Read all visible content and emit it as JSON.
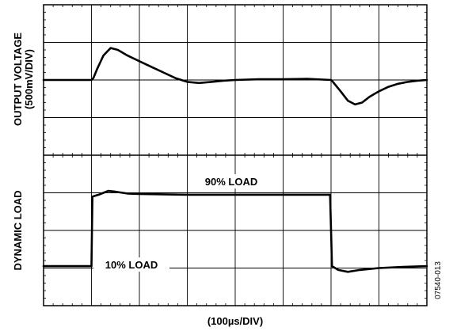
{
  "chart_data": {
    "type": "line",
    "title": "",
    "grid": true,
    "divisions": {
      "x": 8,
      "y": 8
    },
    "xlabel": "(100µs/DIV)",
    "ylabels": {
      "top": {
        "line1": "OUTPUT VOLTAGE",
        "line2": "(500mV/DIV)"
      },
      "bottom": "DYNAMIC LOAD"
    },
    "annotations": {
      "high_load": "90% LOAD",
      "low_load": "10% LOAD"
    },
    "figure_code": "07540-013",
    "xlim": [
      0,
      800
    ],
    "x_unit": "µs",
    "series": [
      {
        "name": "OUTPUT VOLTAGE",
        "y_unit": "div",
        "x": [
          0,
          100,
          104,
          112,
          125,
          140,
          155,
          175,
          200,
          225,
          250,
          275,
          300,
          325,
          350,
          375,
          400,
          450,
          500,
          550,
          600,
          604,
          620,
          635,
          650,
          665,
          680,
          700,
          720,
          740,
          760,
          780,
          800
        ],
        "y": [
          6.0,
          6.0,
          6.05,
          6.3,
          6.65,
          6.85,
          6.8,
          6.65,
          6.5,
          6.35,
          6.2,
          6.05,
          5.95,
          5.92,
          5.95,
          5.98,
          6.0,
          6.02,
          6.02,
          6.03,
          6.0,
          5.95,
          5.7,
          5.45,
          5.35,
          5.4,
          5.55,
          5.7,
          5.82,
          5.9,
          5.95,
          5.98,
          6.0
        ]
      },
      {
        "name": "DYNAMIC LOAD",
        "y_unit": "div",
        "x": [
          0,
          100,
          102,
          115,
          135,
          150,
          175,
          200,
          300,
          400,
          500,
          598,
          600,
          602,
          615,
          635,
          660,
          700,
          750,
          800
        ],
        "y": [
          1.05,
          1.05,
          2.9,
          2.95,
          3.05,
          3.03,
          2.98,
          2.97,
          2.95,
          2.95,
          2.95,
          2.95,
          2.0,
          1.05,
          0.95,
          0.9,
          0.95,
          1.0,
          1.03,
          1.05
        ]
      }
    ]
  }
}
